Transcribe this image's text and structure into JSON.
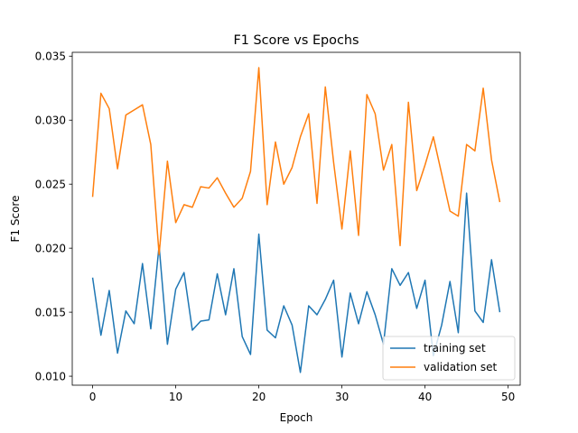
{
  "chart_data": {
    "type": "line",
    "title": "F1 Score vs Epochs",
    "xlabel": "Epoch",
    "ylabel": "F1 Score",
    "xlim": [
      -2.45,
      51.45
    ],
    "ylim": [
      0.0093,
      0.0353
    ],
    "xticks": [
      0,
      10,
      20,
      30,
      40,
      50
    ],
    "yticks": [
      0.01,
      0.015,
      0.02,
      0.025,
      0.03,
      0.035
    ],
    "ytick_labels": [
      "0.010",
      "0.015",
      "0.020",
      "0.025",
      "0.030",
      "0.035"
    ],
    "grid": false,
    "legend_position": "lower-right",
    "x": [
      0,
      1,
      2,
      3,
      4,
      5,
      6,
      7,
      8,
      9,
      10,
      11,
      12,
      13,
      14,
      15,
      16,
      17,
      18,
      19,
      20,
      21,
      22,
      23,
      24,
      25,
      26,
      27,
      28,
      29,
      30,
      31,
      32,
      33,
      34,
      35,
      36,
      37,
      38,
      39,
      40,
      41,
      42,
      43,
      44,
      45,
      46,
      47,
      48,
      49
    ],
    "series": [
      {
        "name": "training set",
        "color": "#1f77b4",
        "values": [
          0.0177,
          0.0132,
          0.0167,
          0.0118,
          0.0151,
          0.0141,
          0.0188,
          0.0137,
          0.0202,
          0.0125,
          0.0168,
          0.0181,
          0.0136,
          0.0143,
          0.0144,
          0.018,
          0.0148,
          0.0184,
          0.0131,
          0.0117,
          0.0211,
          0.0136,
          0.013,
          0.0155,
          0.014,
          0.0103,
          0.0155,
          0.0148,
          0.016,
          0.0175,
          0.0115,
          0.0165,
          0.0141,
          0.0166,
          0.0148,
          0.0125,
          0.0184,
          0.0171,
          0.0181,
          0.0153,
          0.0175,
          0.0116,
          0.014,
          0.0174,
          0.0134,
          0.0243,
          0.0151,
          0.0142,
          0.0191,
          0.015
        ]
      },
      {
        "name": "validation set",
        "color": "#ff7f0e",
        "values": [
          0.024,
          0.0321,
          0.0309,
          0.0262,
          0.0304,
          0.0308,
          0.0312,
          0.0281,
          0.0195,
          0.0268,
          0.022,
          0.0234,
          0.0232,
          0.0248,
          0.0247,
          0.0255,
          0.0243,
          0.0232,
          0.0239,
          0.026,
          0.0341,
          0.0234,
          0.0283,
          0.025,
          0.0263,
          0.0287,
          0.0305,
          0.0235,
          0.0326,
          0.0267,
          0.0215,
          0.0276,
          0.021,
          0.032,
          0.0305,
          0.0261,
          0.0281,
          0.0202,
          0.0314,
          0.0245,
          0.0265,
          0.0287,
          0.0258,
          0.0229,
          0.0225,
          0.0281,
          0.0276,
          0.0325,
          0.0269,
          0.0236
        ]
      }
    ]
  }
}
